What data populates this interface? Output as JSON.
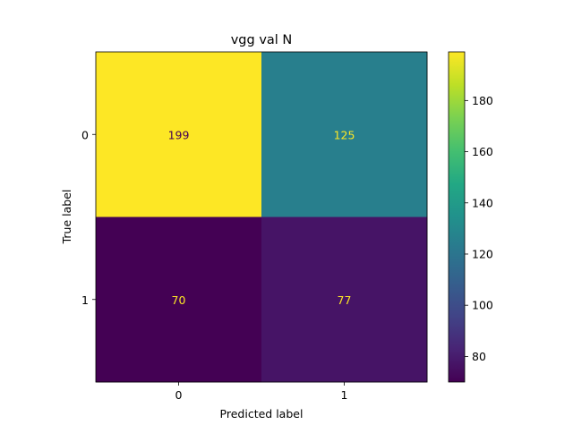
{
  "chart_data": {
    "type": "heatmap",
    "title": "vgg val N",
    "xlabel": "Predicted label",
    "ylabel": "True label",
    "x_categories": [
      "0",
      "1"
    ],
    "y_categories": [
      "0",
      "1"
    ],
    "matrix": [
      [
        199,
        125
      ],
      [
        70,
        77
      ]
    ],
    "colormap": "viridis",
    "colorbar": {
      "range": [
        70,
        199
      ],
      "ticks": [
        80,
        100,
        120,
        140,
        160,
        180
      ]
    },
    "text_color_low": "#fde725",
    "text_color_high": "#440154"
  }
}
